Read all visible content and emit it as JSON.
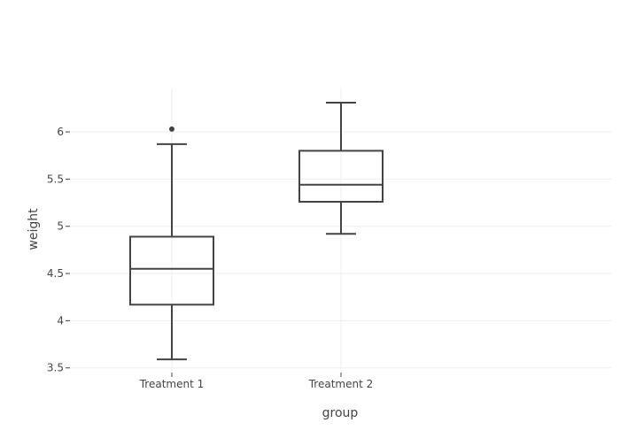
{
  "chart_data": {
    "type": "box",
    "xlabel": "group",
    "ylabel": "weight",
    "categories": [
      "Treatment 1",
      "Treatment 2"
    ],
    "ylim": [
      3.46,
      6.46
    ],
    "yticks": [
      3.5,
      4,
      4.5,
      5,
      5.5,
      6
    ],
    "ytick_labels": [
      "3.5",
      "4",
      "4.5",
      "5",
      "5.5",
      "6"
    ],
    "grid": true,
    "boxes": [
      {
        "category": "Treatment 1",
        "min": 3.59,
        "q1": 4.17,
        "median": 4.55,
        "q3": 4.89,
        "max": 5.87,
        "outliers": [
          6.03
        ]
      },
      {
        "category": "Treatment 2",
        "min": 4.92,
        "q1": 5.26,
        "median": 5.44,
        "q3": 5.8,
        "max": 6.31,
        "outliers": []
      }
    ],
    "colors": {
      "box_line": "#444444",
      "grid": "#eeeeee",
      "axis_text": "#444444",
      "background": "#ffffff"
    }
  }
}
